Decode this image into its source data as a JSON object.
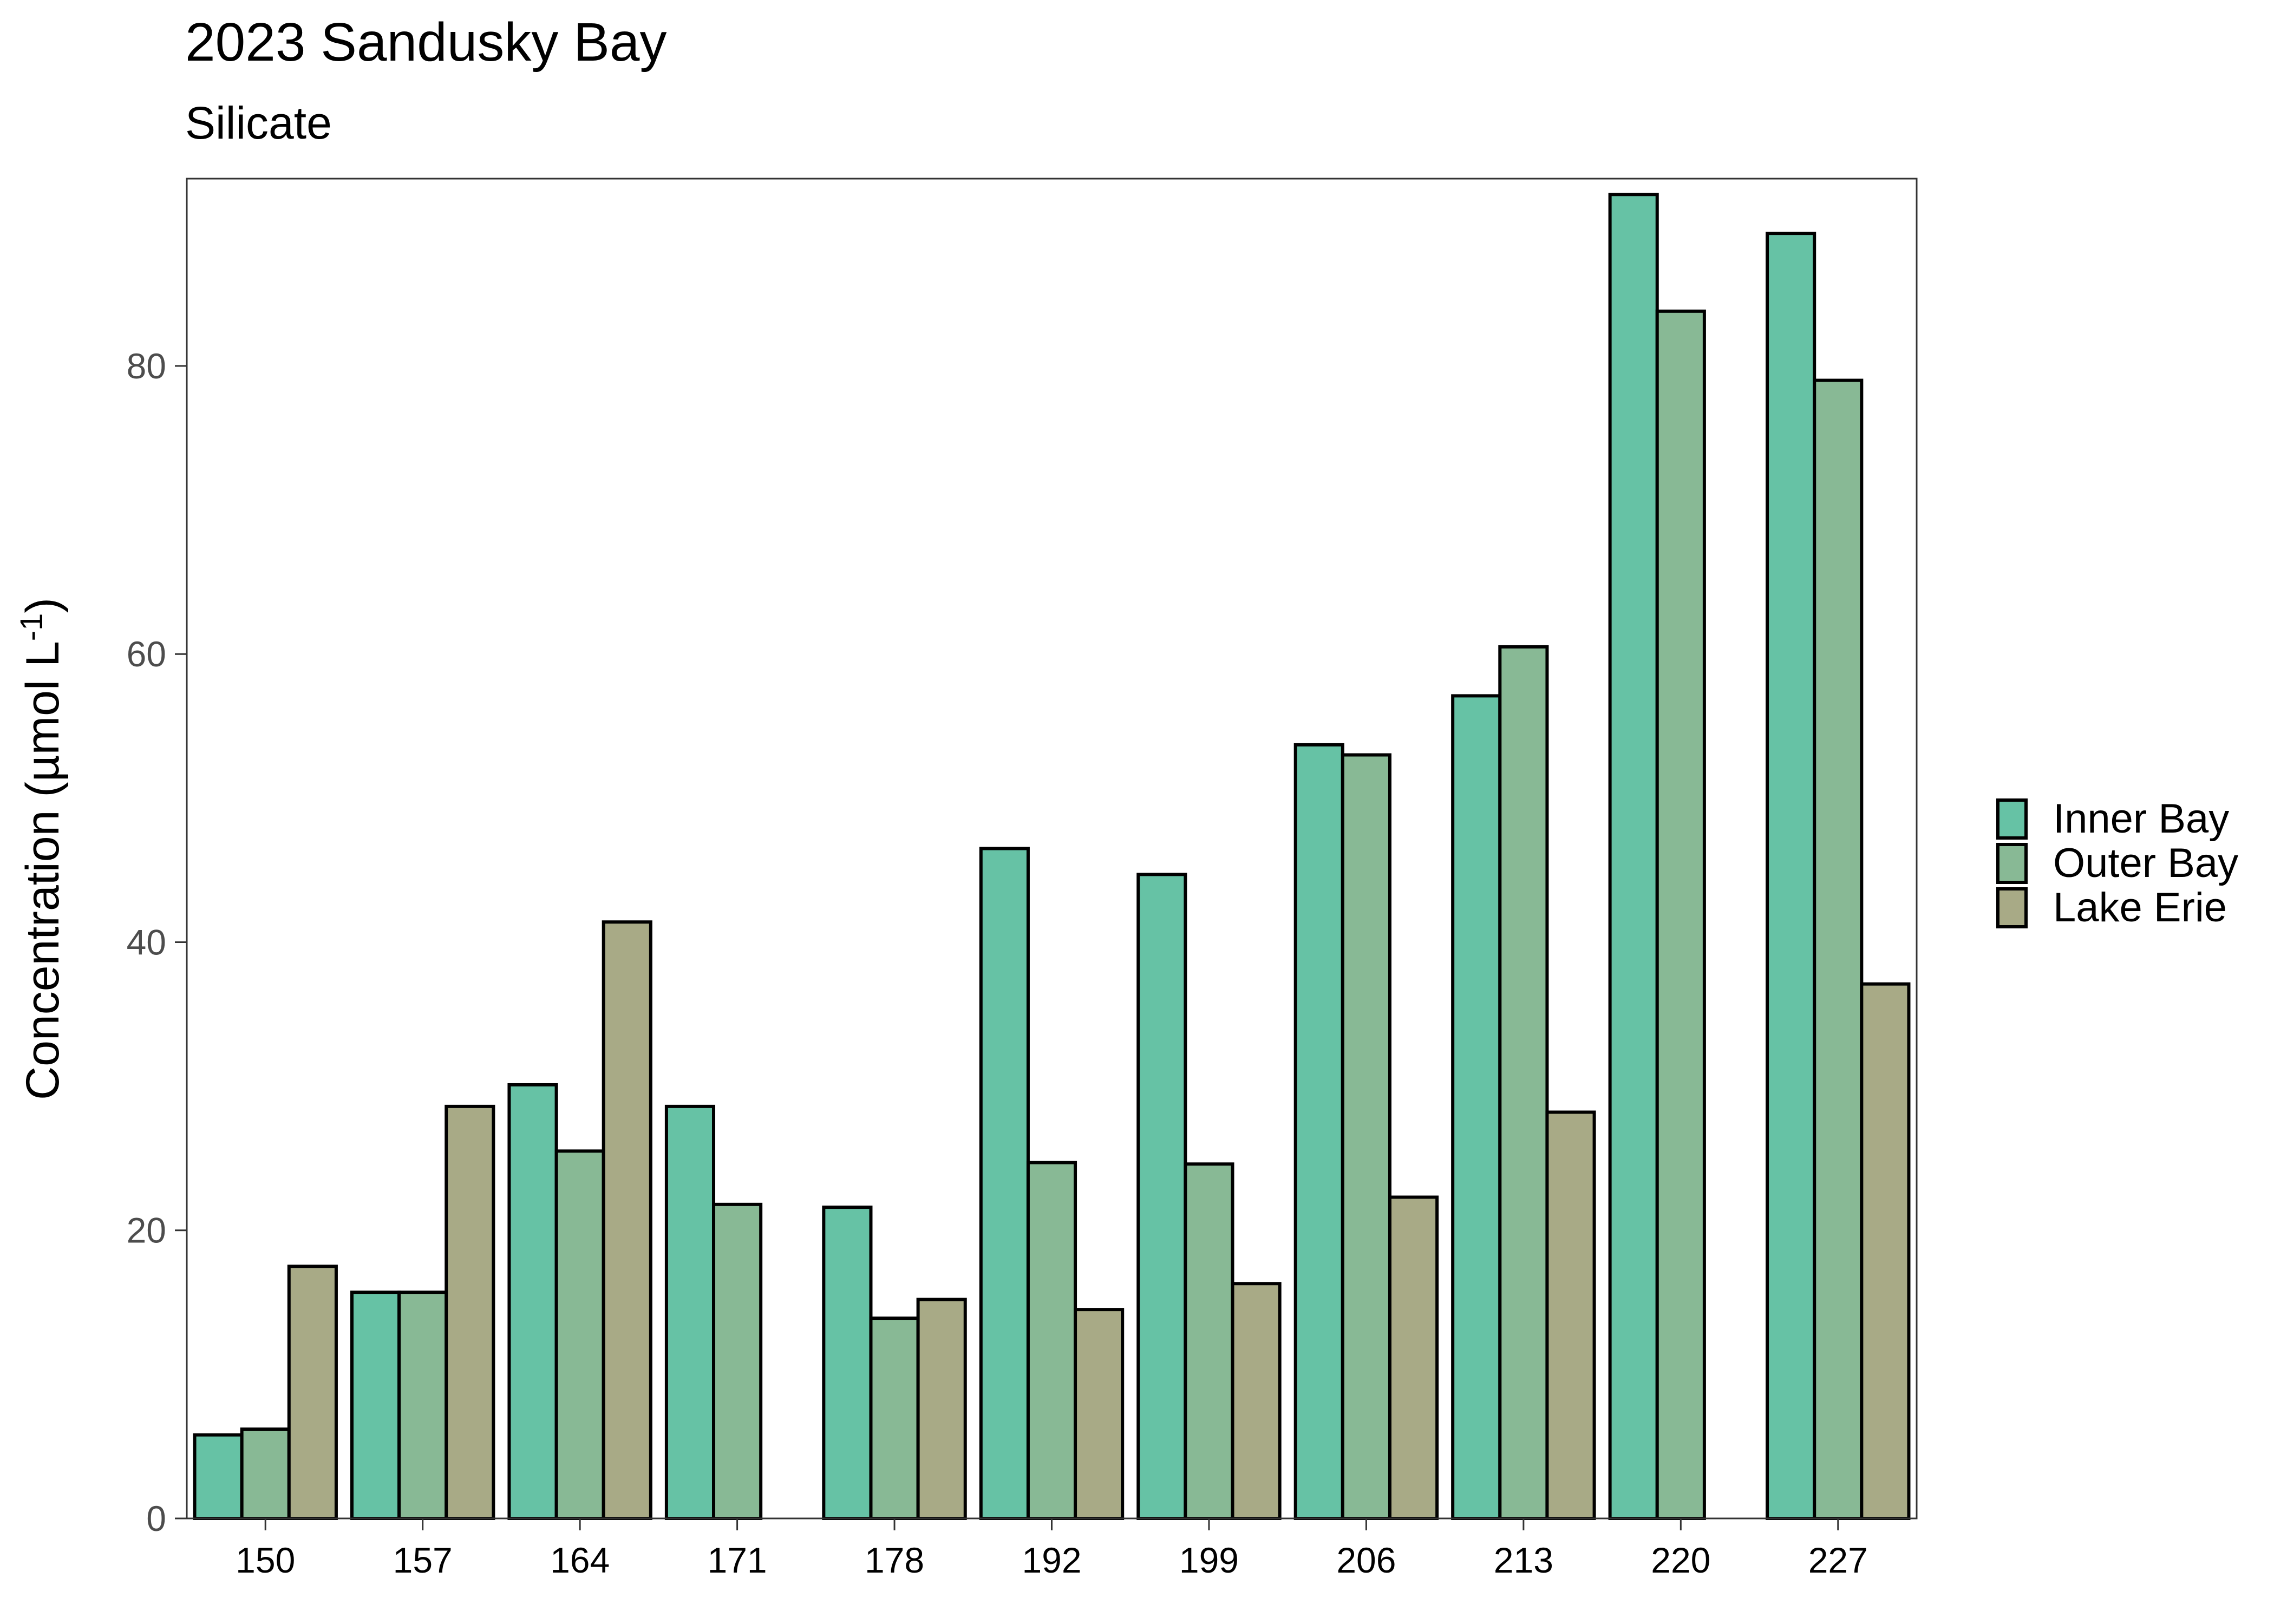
{
  "chart_data": {
    "type": "bar",
    "title": "2023 Sandusky Bay",
    "subtitle": "Silicate",
    "xlabel": "",
    "ylabel": "Concentration (µmol L",
    "ylabel_superscript": "-1",
    "ylabel_close": ")",
    "categories": [
      "150",
      "157",
      "164",
      "171",
      "178",
      "192",
      "199",
      "206",
      "213",
      "220",
      "227"
    ],
    "series": [
      {
        "name": "Inner Bay",
        "color": "#66c2a5",
        "values": [
          5.8,
          15.7,
          30.1,
          28.6,
          21.6,
          46.5,
          44.7,
          53.7,
          57.1,
          91.9,
          89.2
        ]
      },
      {
        "name": "Outer Bay",
        "color": "#88b995",
        "values": [
          6.2,
          15.7,
          25.5,
          21.8,
          13.9,
          24.7,
          24.6,
          53.0,
          60.5,
          83.8,
          79.0
        ]
      },
      {
        "name": "Lake Erie",
        "color": "#a8aa86",
        "values": [
          17.5,
          28.6,
          41.4,
          null,
          15.2,
          14.5,
          16.3,
          22.3,
          28.2,
          null,
          37.1
        ]
      }
    ],
    "ylim": [
      0,
      93
    ],
    "yticks": [
      0,
      20,
      40,
      60,
      80
    ],
    "grid": false,
    "legend": "right"
  }
}
